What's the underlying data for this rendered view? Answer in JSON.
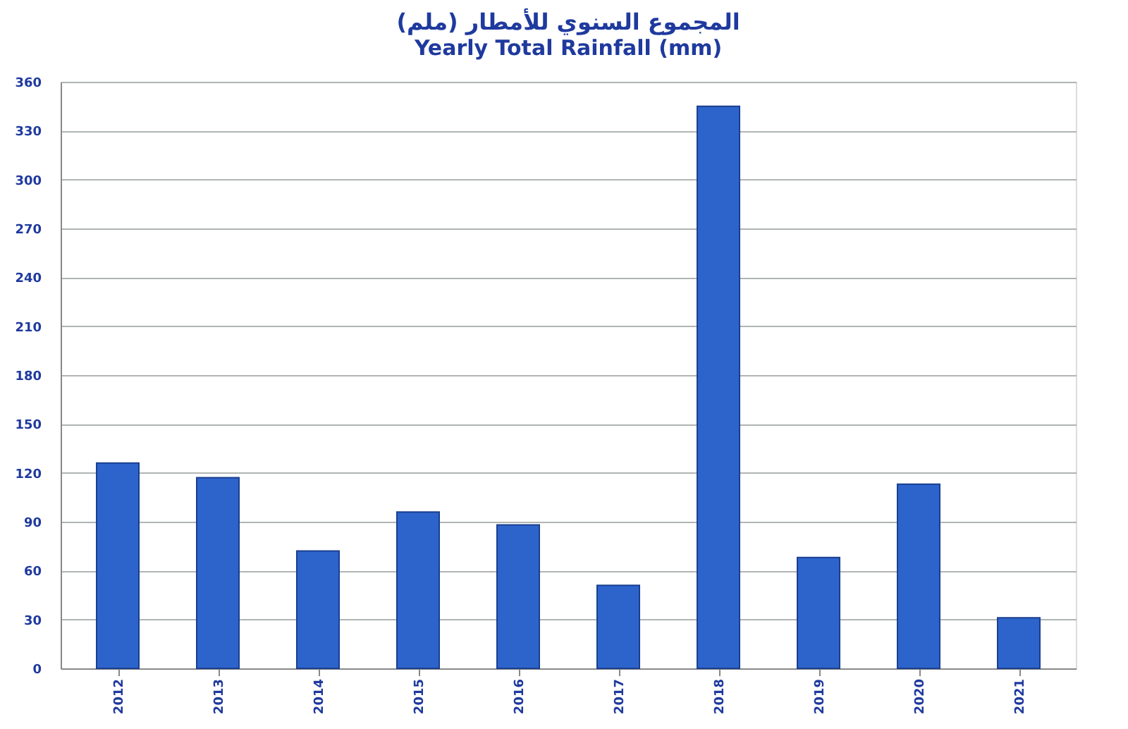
{
  "chart_data": {
    "type": "bar",
    "title": "المجموع  السنوي للأمطار (ملم)",
    "subtitle": "Yearly Total Rainfall (mm)",
    "categories": [
      "2012",
      "2013",
      "2014",
      "2015",
      "2016",
      "2017",
      "2018",
      "2019",
      "2020",
      "2021"
    ],
    "values": [
      126,
      117,
      72,
      96,
      88,
      51,
      345,
      68,
      113,
      31
    ],
    "color": "#2d64cc",
    "ylim": [
      0,
      360
    ],
    "yticks": [
      0,
      30,
      60,
      90,
      120,
      150,
      180,
      210,
      240,
      270,
      300,
      330,
      360
    ],
    "grid": "y"
  }
}
